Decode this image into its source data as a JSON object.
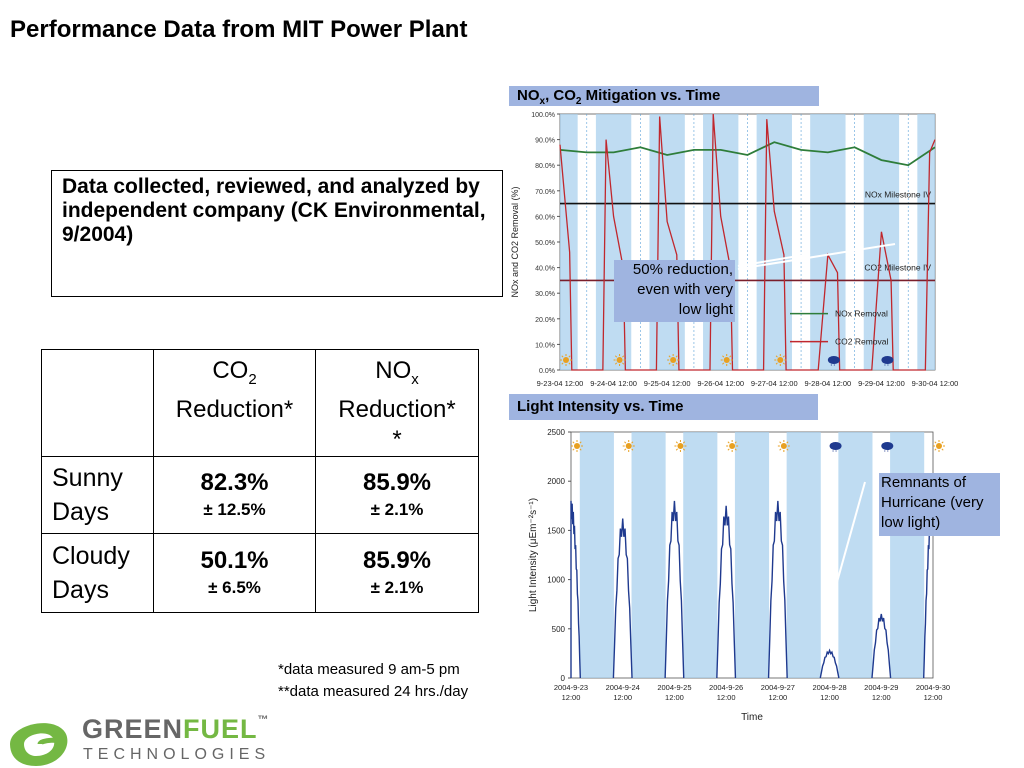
{
  "page": {
    "title": "Performance Data from MIT Power Plant",
    "intro": "Data collected, reviewed, and analyzed by independent company (CK Environmental, 9/2004)"
  },
  "table": {
    "col1_main": "CO",
    "col1_sub": "2",
    "col1_line2": "Reduction*",
    "col2_main": "NO",
    "col2_sub": "x",
    "col2_line2": "Reduction*",
    "col2_line3": "*",
    "rows": [
      {
        "label_l1": "Sunny",
        "label_l2": "Days",
        "co2": "82.3%",
        "co2_err": "± 12.5%",
        "nox": "85.9%",
        "nox_err": "± 2.1%"
      },
      {
        "label_l1": "Cloudy",
        "label_l2": "Days",
        "co2": "50.1%",
        "co2_err": "± 6.5%",
        "nox": "85.9%",
        "nox_err": "± 2.1%"
      }
    ]
  },
  "footnotes": [
    "*data measured 9 am-5 pm",
    "**data measured 24 hrs./day"
  ],
  "logo": {
    "word1": "GREEN",
    "word2": "FUEL",
    "tm": "™",
    "sub": "TECHNOLOGIES"
  },
  "colors": {
    "accent": "#9fb4e0",
    "nox": "#2e7d3a",
    "co2": "#c0272d",
    "light": "#1f3a8f",
    "day_band": "#a9d0ee",
    "logo_green": "#74b843",
    "logo_gray": "#666666"
  },
  "chart_data": [
    {
      "type": "line",
      "title_main": "NO",
      "title_sub1": "x",
      "title_mid": ", CO",
      "title_sub2": "2",
      "title_end": " Mitigation vs. Time",
      "ylabel": "NOx and CO2 Removal (%)",
      "xlabel": "",
      "ylim": [
        0,
        100
      ],
      "y_ticks": [
        "0.0%",
        "10.0%",
        "20.0%",
        "30.0%",
        "40.0%",
        "50.0%",
        "60.0%",
        "70.0%",
        "80.0%",
        "90.0%",
        "100.0%"
      ],
      "x_ticks": [
        "9-23-04 12:00",
        "9-24-04 12:00",
        "9-25-04 12:00",
        "9-26-04 12:00",
        "9-27-04 12:00",
        "9-28-04 12:00",
        "9-29-04 12:00",
        "9-30-04 12:00"
      ],
      "x_range_days": [
        0,
        7
      ],
      "grid": false,
      "legend": "right",
      "milestones": [
        {
          "name": "NOx Milestone IV",
          "value": 65
        },
        {
          "name": "CO2 Milestone IV",
          "value": 35
        }
      ],
      "series": [
        {
          "name": "NOx Removal",
          "x": [
            0,
            0.5,
            1,
            1.5,
            2,
            2.5,
            3,
            3.5,
            4,
            4.5,
            5,
            5.5,
            6,
            6.5,
            7
          ],
          "values": [
            86,
            85,
            85,
            87,
            84,
            86,
            86,
            84,
            89,
            86,
            85,
            87,
            82,
            80,
            87
          ]
        },
        {
          "name": "CO2 Removal",
          "x": [
            0,
            0.18,
            0.22,
            0.5,
            0.8,
            0.86,
            1.0,
            1.18,
            1.22,
            1.5,
            1.8,
            1.86,
            2.0,
            2.18,
            2.22,
            2.5,
            2.8,
            2.86,
            3.0,
            3.18,
            3.22,
            3.5,
            3.8,
            3.86,
            4.0,
            4.18,
            4.22,
            4.5,
            4.82,
            5.0,
            5.18,
            5.22,
            5.5,
            5.82,
            6.0,
            6.18,
            6.22,
            6.5,
            6.82,
            6.9,
            7.0
          ],
          "values": [
            88,
            46,
            0,
            0,
            0,
            90,
            60,
            40,
            0,
            0,
            0,
            99,
            58,
            45,
            0,
            0,
            0,
            100,
            60,
            40,
            0,
            0,
            0,
            98,
            62,
            45,
            0,
            0,
            0,
            45,
            38,
            0,
            0,
            0,
            54,
            35,
            0,
            0,
            0,
            85,
            90
          ]
        }
      ],
      "annotation": "50% reduction, even with very low light"
    },
    {
      "type": "line",
      "title": "Light Intensity vs. Time",
      "xlabel": "Time",
      "ylim": [
        0,
        2500
      ],
      "y_ticks": [
        "0",
        "500",
        "1000",
        "1500",
        "2000",
        "2500"
      ],
      "x_tick_dates": [
        "2004-9-23",
        "2004-9-24",
        "2004-9-25",
        "2004-9-26",
        "2004-9-27",
        "2004-9-28",
        "2004-9-29",
        "2004-9-30"
      ],
      "x_tick_times": [
        "12:00",
        "12:00",
        "12:00",
        "12:00",
        "12:00",
        "12:00",
        "12:00",
        "12:00"
      ],
      "x_range_days": [
        0,
        7
      ],
      "grid": false,
      "series": [
        {
          "name": "",
          "daily_peaks": [
            1800,
            1620,
            1800,
            1750,
            1800,
            280,
            650,
            1800
          ]
        }
      ],
      "annotation": "Remnants of Hurricane (very low light)"
    }
  ]
}
